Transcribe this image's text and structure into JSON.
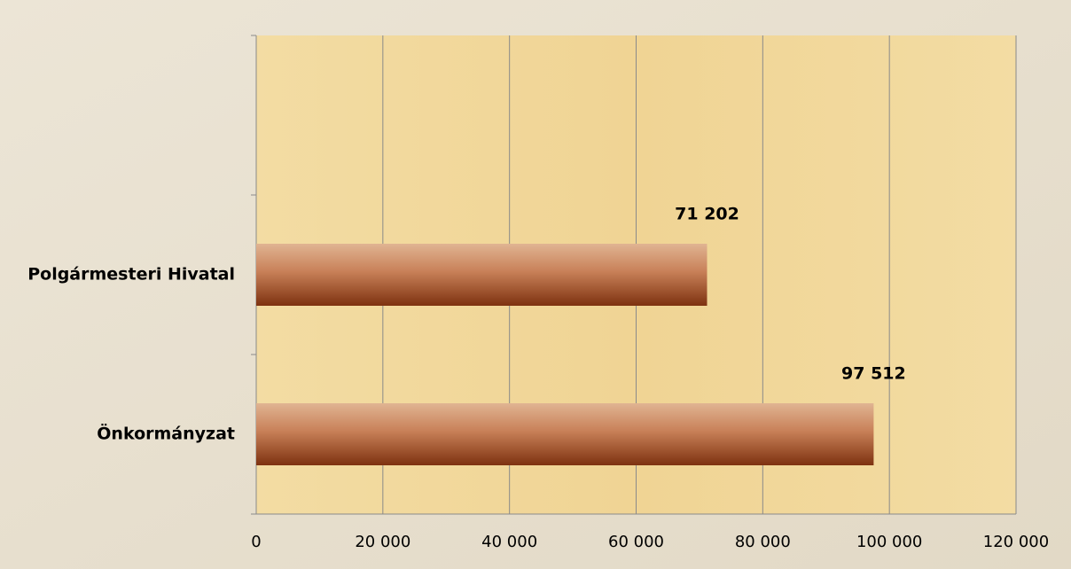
{
  "chart_data": {
    "type": "bar",
    "orientation": "horizontal",
    "categories": [
      null,
      "Polgármesteri Hivatal",
      "Önkormányzat"
    ],
    "values": [
      null,
      71202,
      97512
    ],
    "value_labels": [
      null,
      "71 202",
      "97 512"
    ],
    "xlim": [
      0,
      120000
    ],
    "xticks": [
      0,
      {
        "value": 20000,
        "label": "20 000"
      },
      {
        "value": 40000,
        "label": "40 000"
      },
      {
        "value": 60000,
        "label": "60 000"
      },
      {
        "value": 80000,
        "label": "80 000"
      },
      {
        "value": 100000,
        "label": "100 000"
      },
      {
        "value": 120000,
        "label": "120 000"
      }
    ],
    "grid": true
  }
}
